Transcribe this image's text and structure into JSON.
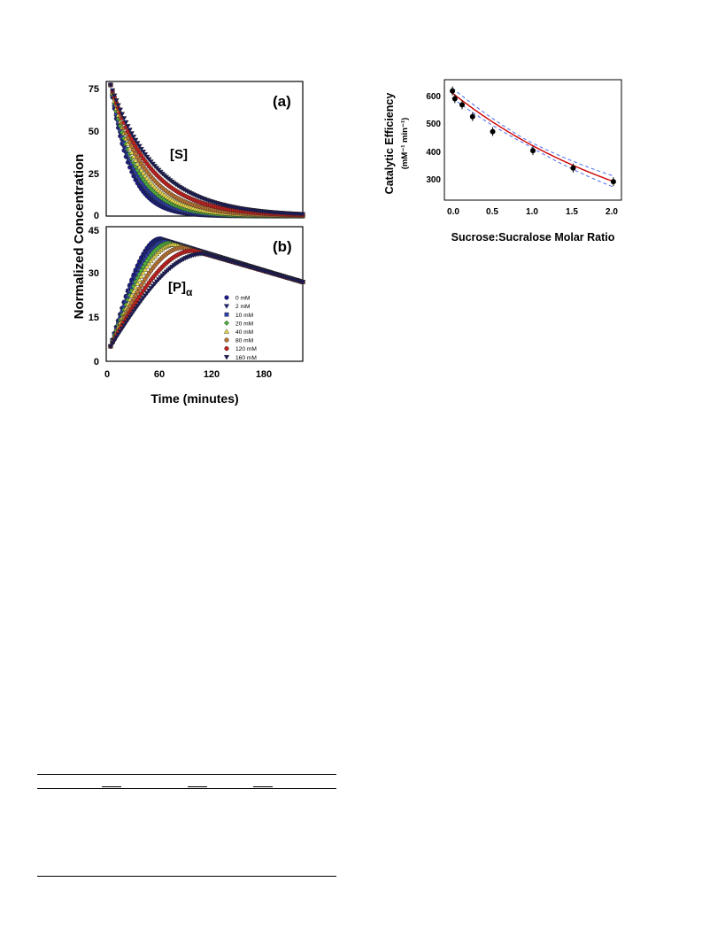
{
  "figure_left": {
    "ylabel": "Normalized Concentration",
    "xlabel": "Time (minutes)",
    "xticks": [
      "0",
      "60",
      "120",
      "180"
    ],
    "panel_a": {
      "tag": "(a)",
      "species": "[S]",
      "yticks": [
        "0",
        "25",
        "50",
        "75"
      ]
    },
    "panel_b": {
      "tag": "(b)",
      "species": "[P]",
      "species_sub": "α",
      "yticks": [
        "0",
        "15",
        "30",
        "45"
      ]
    },
    "legend": [
      "0 mM",
      "2 mM",
      "10 mM",
      "20 mM",
      "40 mM",
      "80 mM",
      "120 mM",
      "160 mM"
    ]
  },
  "figure_right": {
    "ylabel": "Catalytic Efficiency",
    "yunit": "(mM⁻¹ min⁻¹)",
    "xlabel": "Sucrose:Sucralose Molar Ratio",
    "xticks": [
      "0.0",
      "0.5",
      "1.0",
      "1.5",
      "2.0"
    ],
    "yticks": [
      "300",
      "400",
      "500",
      "600"
    ]
  },
  "chart_data": [
    {
      "type": "line",
      "panel": "a",
      "xlim": [
        0,
        225
      ],
      "ylim": [
        0,
        77
      ],
      "series": [
        {
          "name": "0 mM",
          "color": "#1a1a8c",
          "marker": "circle",
          "v0": 75,
          "k": 0.045
        },
        {
          "name": "2 mM",
          "color": "#1a237e",
          "marker": "tri-down",
          "v0": 75,
          "k": 0.042
        },
        {
          "name": "10 mM",
          "color": "#2c3ea8",
          "marker": "square",
          "v0": 75,
          "k": 0.038
        },
        {
          "name": "20 mM",
          "color": "#4fae3a",
          "marker": "diamond",
          "v0": 75,
          "k": 0.034
        },
        {
          "name": "40 mM",
          "color": "#e6d84a",
          "marker": "tri-up",
          "v0": 75,
          "k": 0.03
        },
        {
          "name": "80 mM",
          "color": "#b87333",
          "marker": "circle",
          "v0": 75,
          "k": 0.026
        },
        {
          "name": "120 mM",
          "color": "#c0201e",
          "marker": "circle",
          "v0": 75,
          "k": 0.022
        },
        {
          "name": "160 mM",
          "color": "#1a1a5c",
          "marker": "tri-down",
          "v0": 75,
          "k": 0.019
        }
      ]
    },
    {
      "type": "line",
      "panel": "b",
      "xlim": [
        0,
        225
      ],
      "ylim": [
        0,
        45
      ],
      "series": [
        {
          "name": "0 mM",
          "color": "#1a1a8c",
          "marker": "circle",
          "peak": 41,
          "tpeak": 62
        },
        {
          "name": "2 mM",
          "color": "#1a237e",
          "marker": "tri-down",
          "peak": 40.5,
          "tpeak": 64
        },
        {
          "name": "10 mM",
          "color": "#2c3ea8",
          "marker": "square",
          "peak": 40,
          "tpeak": 68
        },
        {
          "name": "20 mM",
          "color": "#4fae3a",
          "marker": "diamond",
          "peak": 39.5,
          "tpeak": 72
        },
        {
          "name": "40 mM",
          "color": "#e6d84a",
          "marker": "tri-up",
          "peak": 39,
          "tpeak": 78
        },
        {
          "name": "80 mM",
          "color": "#b87333",
          "marker": "circle",
          "peak": 38,
          "tpeak": 88
        },
        {
          "name": "120 mM",
          "color": "#c0201e",
          "marker": "circle",
          "peak": 37,
          "tpeak": 100
        },
        {
          "name": "160 mM",
          "color": "#1a1a5c",
          "marker": "tri-down",
          "peak": 36,
          "tpeak": 112
        }
      ]
    },
    {
      "type": "scatter",
      "xlim": [
        -0.1,
        2.1
      ],
      "ylim": [
        210,
        660
      ],
      "points": [
        {
          "x": 0.0,
          "y": 618
        },
        {
          "x": 0.03,
          "y": 589
        },
        {
          "x": 0.12,
          "y": 566
        },
        {
          "x": 0.25,
          "y": 522
        },
        {
          "x": 0.5,
          "y": 466
        },
        {
          "x": 1.0,
          "y": 395
        },
        {
          "x": 1.5,
          "y": 330
        },
        {
          "x": 2.0,
          "y": 279
        }
      ],
      "fit": {
        "color": "#cc0000",
        "a": 610,
        "b": -0.39
      },
      "confidence_band": {
        "color": "#4a6cf0",
        "width": 14
      }
    }
  ]
}
